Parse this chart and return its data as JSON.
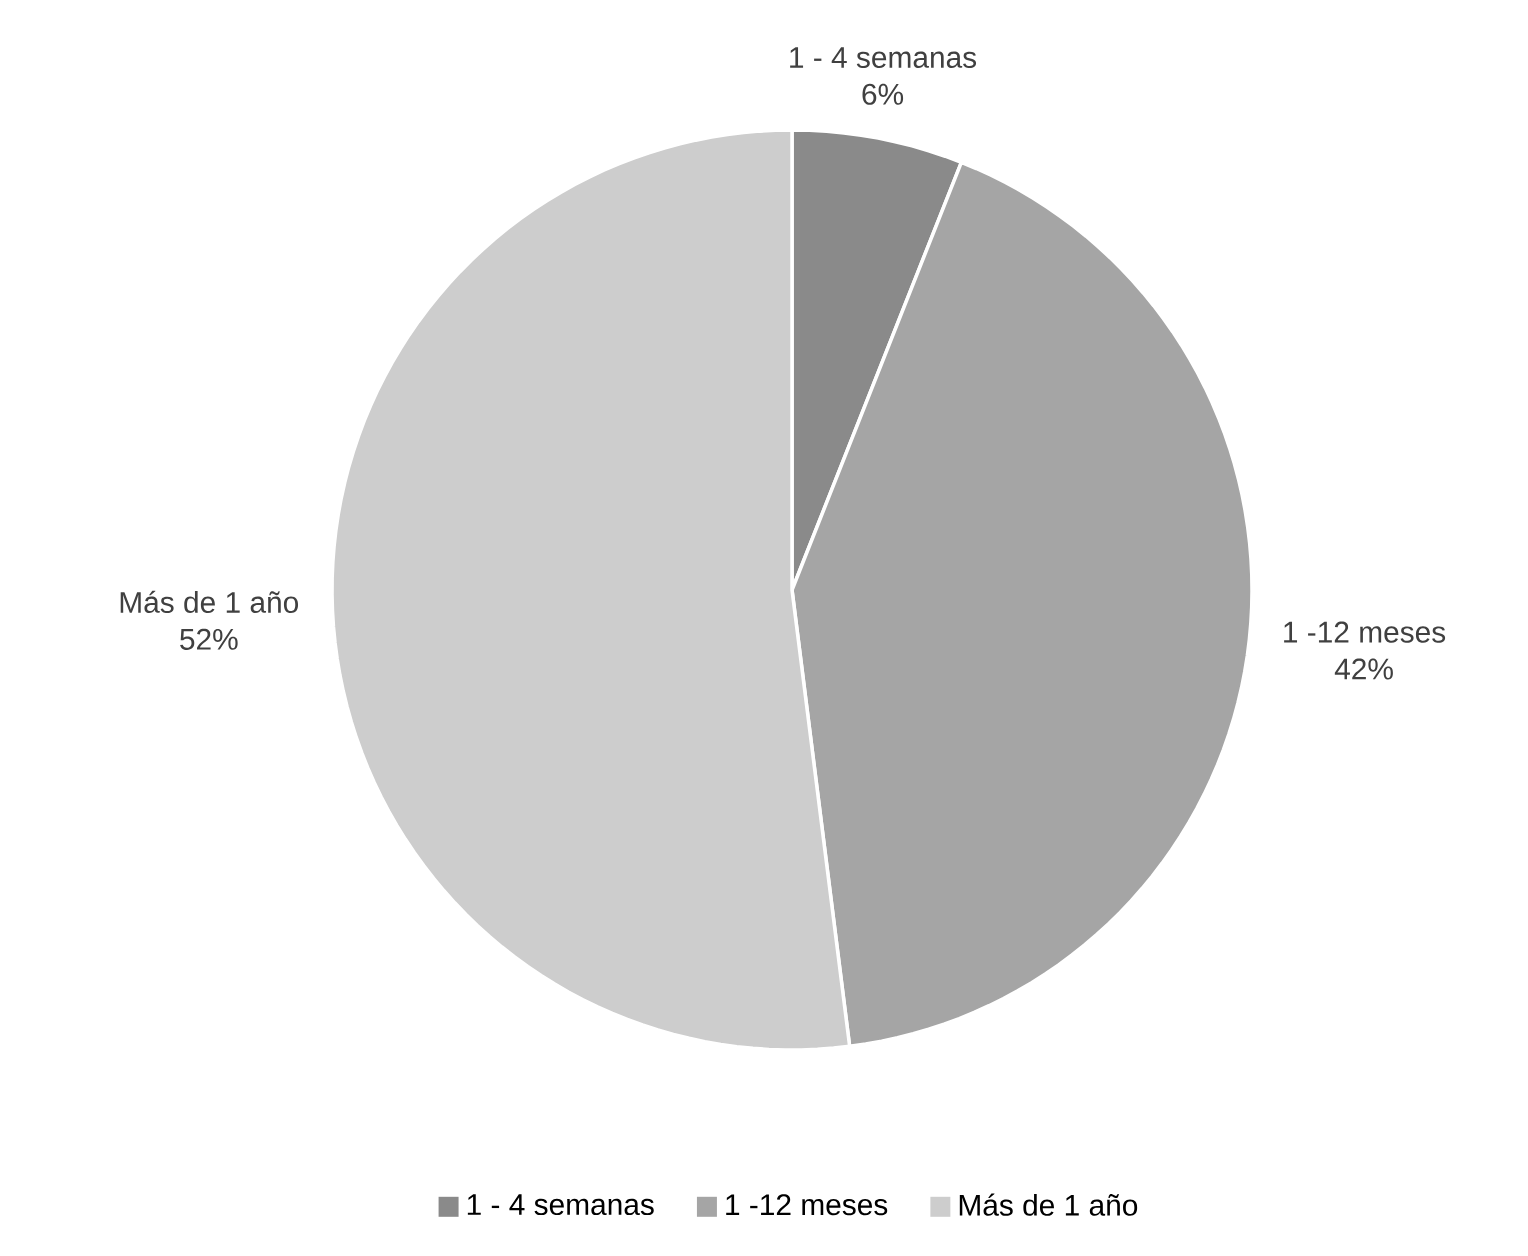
{
  "chart_data": {
    "type": "pie",
    "categories": [
      "1 - 4 semanas",
      "1 -12 meses",
      "Más de 1 año"
    ],
    "values": [
      6,
      42,
      52
    ],
    "value_labels": [
      "6%",
      "42%",
      "52%"
    ],
    "colors": [
      "#8a8a8a",
      "#a5a5a5",
      "#cdcdcd"
    ],
    "legend": "bottom"
  }
}
